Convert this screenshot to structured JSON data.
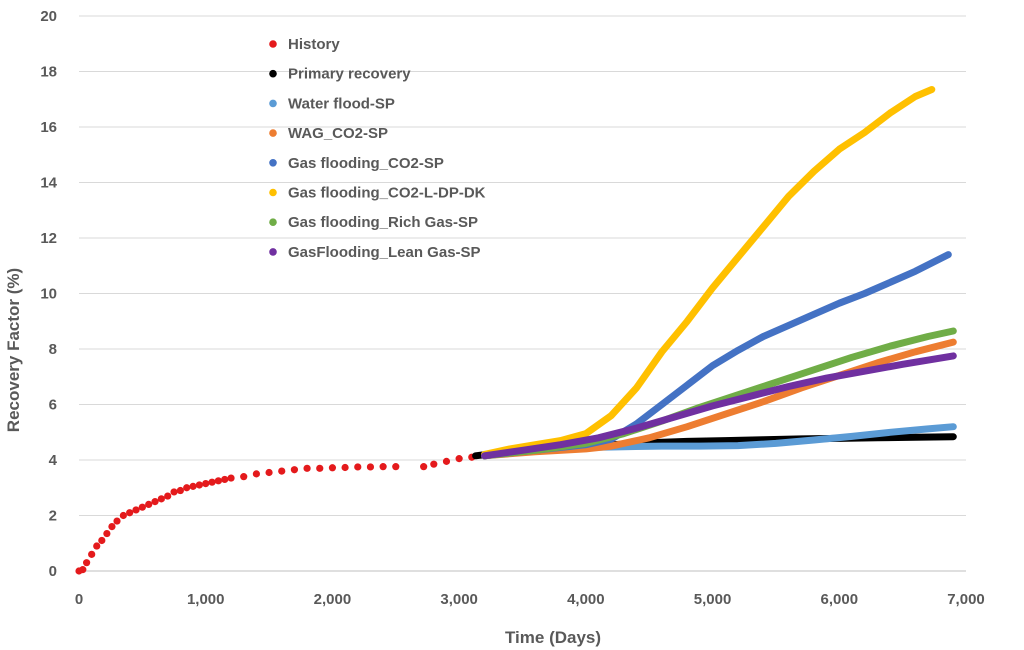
{
  "chart_data": {
    "type": "scatter",
    "title": "",
    "xlabel": "Time (Days)",
    "ylabel": "Recovery Factor (%)",
    "xlim": [
      0,
      7000
    ],
    "ylim": [
      0,
      20
    ],
    "x_ticks": [
      0,
      1000,
      2000,
      3000,
      4000,
      5000,
      6000,
      7000
    ],
    "x_tick_labels": [
      "0",
      "1,000",
      "2,000",
      "3,000",
      "4,000",
      "5,000",
      "6,000",
      "7,000"
    ],
    "y_ticks": [
      0,
      2,
      4,
      6,
      8,
      10,
      12,
      14,
      16,
      18,
      20
    ],
    "y_tick_labels": [
      "0",
      "2",
      "4",
      "6",
      "8",
      "10",
      "12",
      "14",
      "16",
      "18",
      "20"
    ],
    "grid": "horizontal",
    "legend_position": "top-left",
    "series": [
      {
        "name": "History",
        "color": "#e41a1c",
        "mode": "markers",
        "x": [
          0,
          30,
          60,
          100,
          140,
          180,
          220,
          260,
          300,
          350,
          400,
          450,
          500,
          550,
          600,
          650,
          700,
          750,
          800,
          850,
          900,
          950,
          1000,
          1050,
          1100,
          1150,
          1200,
          1300,
          1400,
          1500,
          1600,
          1700,
          1800,
          1900,
          2000,
          2100,
          2200,
          2300,
          2400,
          2500,
          2720,
          2800,
          2900,
          3000,
          3100
        ],
        "y": [
          0,
          0.05,
          0.3,
          0.6,
          0.9,
          1.1,
          1.35,
          1.6,
          1.8,
          2.0,
          2.1,
          2.2,
          2.3,
          2.4,
          2.5,
          2.6,
          2.7,
          2.85,
          2.9,
          3.0,
          3.05,
          3.1,
          3.15,
          3.2,
          3.25,
          3.3,
          3.35,
          3.4,
          3.5,
          3.55,
          3.6,
          3.65,
          3.7,
          3.7,
          3.72,
          3.73,
          3.75,
          3.75,
          3.76,
          3.76,
          3.76,
          3.85,
          3.95,
          4.05,
          4.1
        ]
      },
      {
        "name": "Primary recovery",
        "color": "#000000",
        "mode": "line",
        "x": [
          3130,
          3300,
          3600,
          3900,
          4200,
          4500,
          4800,
          5100,
          5400,
          5700,
          6000,
          6300,
          6600,
          6900
        ],
        "y": [
          4.15,
          4.25,
          4.35,
          4.45,
          4.55,
          4.62,
          4.67,
          4.7,
          4.73,
          4.76,
          4.78,
          4.8,
          4.82,
          4.84
        ]
      },
      {
        "name": "Water flood-SP",
        "color": "#5b9bd5",
        "mode": "line",
        "x": [
          3200,
          3500,
          3800,
          4000,
          4300,
          4600,
          4900,
          5200,
          5500,
          5800,
          6100,
          6400,
          6700,
          6900
        ],
        "y": [
          4.15,
          4.3,
          4.4,
          4.45,
          4.48,
          4.5,
          4.5,
          4.52,
          4.6,
          4.72,
          4.85,
          5.0,
          5.12,
          5.2
        ]
      },
      {
        "name": "WAG_CO2-SP",
        "color": "#ed7d31",
        "mode": "line",
        "x": [
          3200,
          3600,
          4000,
          4200,
          4500,
          4800,
          5100,
          5400,
          5700,
          6000,
          6300,
          6600,
          6900
        ],
        "y": [
          4.15,
          4.3,
          4.4,
          4.5,
          4.8,
          5.2,
          5.65,
          6.1,
          6.6,
          7.05,
          7.5,
          7.9,
          8.25
        ]
      },
      {
        "name": "Gas flooding_CO2-SP",
        "color": "#4472c4",
        "mode": "line",
        "x": [
          3200,
          3600,
          4000,
          4200,
          4400,
          4600,
          4800,
          5000,
          5200,
          5400,
          5600,
          5800,
          6000,
          6200,
          6400,
          6600,
          6860
        ],
        "y": [
          4.15,
          4.35,
          4.55,
          4.75,
          5.3,
          6.0,
          6.7,
          7.4,
          7.95,
          8.45,
          8.85,
          9.25,
          9.65,
          10.0,
          10.4,
          10.8,
          11.4
        ]
      },
      {
        "name": "Gas flooding_CO2-L-DP-DK",
        "color": "#ffc000",
        "mode": "line",
        "x": [
          3200,
          3400,
          3600,
          3800,
          4000,
          4200,
          4400,
          4600,
          4800,
          5000,
          5200,
          5400,
          5600,
          5800,
          6000,
          6200,
          6400,
          6600,
          6730
        ],
        "y": [
          4.2,
          4.4,
          4.55,
          4.7,
          4.95,
          5.6,
          6.6,
          7.9,
          9.0,
          10.2,
          11.3,
          12.4,
          13.5,
          14.4,
          15.2,
          15.8,
          16.5,
          17.1,
          17.35
        ]
      },
      {
        "name": "Gas flooding_Rich Gas-SP",
        "color": "#70ad47",
        "mode": "line",
        "x": [
          3200,
          3600,
          4000,
          4300,
          4600,
          4900,
          5200,
          5500,
          5800,
          6100,
          6400,
          6700,
          6900
        ],
        "y": [
          4.15,
          4.35,
          4.6,
          4.95,
          5.4,
          5.9,
          6.35,
          6.8,
          7.25,
          7.7,
          8.1,
          8.45,
          8.65
        ]
      },
      {
        "name": "GasFlooding_Lean Gas-SP",
        "color": "#7030a0",
        "mode": "line",
        "x": [
          3200,
          3500,
          3800,
          4100,
          4400,
          4700,
          5000,
          5300,
          5600,
          5900,
          6200,
          6500,
          6900
        ],
        "y": [
          4.15,
          4.35,
          4.55,
          4.8,
          5.15,
          5.55,
          5.95,
          6.3,
          6.65,
          6.95,
          7.2,
          7.45,
          7.75
        ]
      }
    ]
  }
}
